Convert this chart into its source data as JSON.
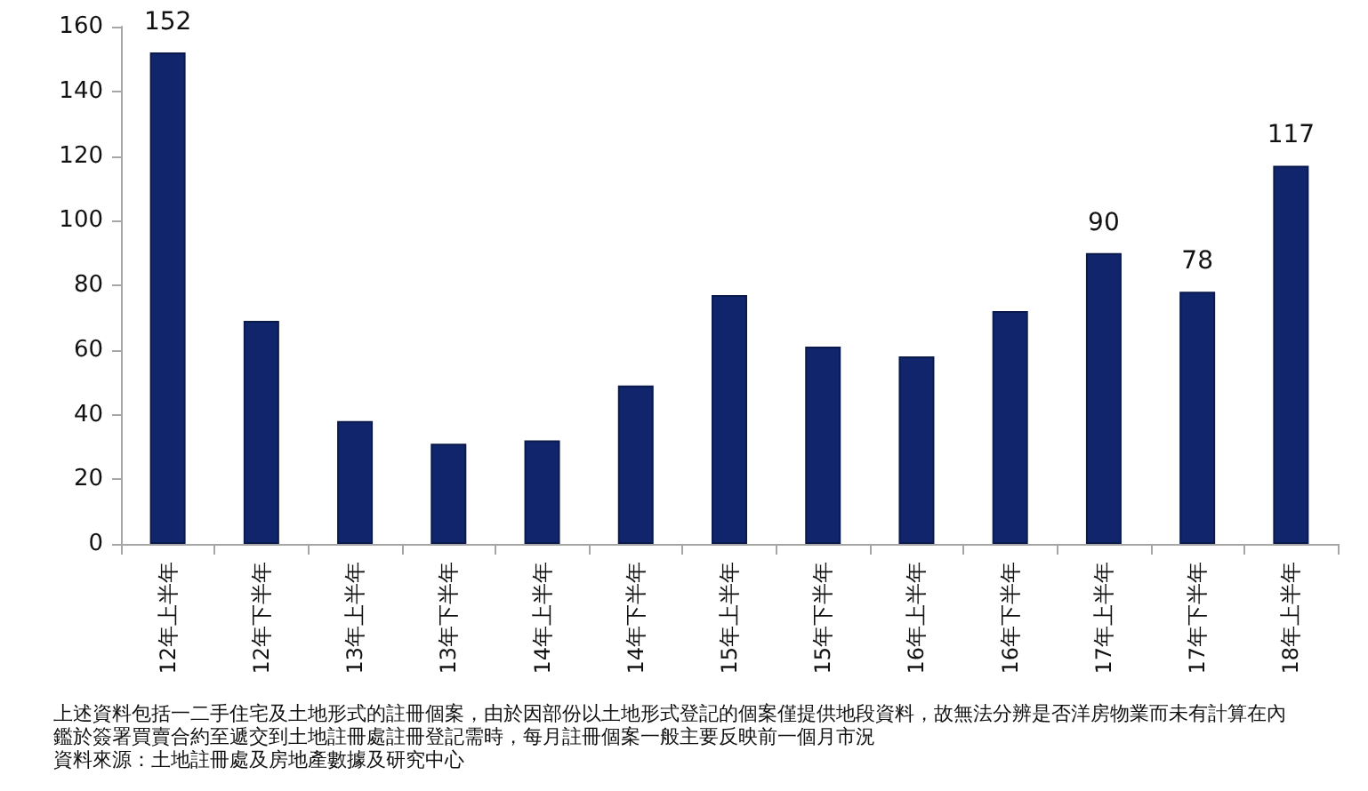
{
  "chart_data": {
    "type": "bar",
    "categories": [
      "12年上半年",
      "12年下半年",
      "13年上半年",
      "13年下半年",
      "14年上半年",
      "14年下半年",
      "15年上半年",
      "15年下半年",
      "16年上半年",
      "16年下半年",
      "17年上半年",
      "17年下半年",
      "18年上半年"
    ],
    "values": [
      152,
      69,
      38,
      31,
      32,
      49,
      77,
      61,
      58,
      72,
      90,
      78,
      117
    ],
    "value_labels": [
      "152",
      null,
      null,
      null,
      null,
      null,
      null,
      null,
      null,
      null,
      "90",
      "78",
      "117"
    ],
    "color": "#10256b",
    "ylim": [
      0,
      160
    ],
    "yticks": [
      0,
      20,
      40,
      60,
      80,
      100,
      120,
      140,
      160
    ],
    "annotations": [
      "上述資料包括一二手住宅及土地形式的註冊個案，由於因部份以土地形式登記的個案僅提供地段資料，故無法分辨是否洋房物業而未有計算在內",
      "鑑於簽署買賣合約至遞交到土地註冊處註冊登記需時，每月註冊個案一般主要反映前一個月市況",
      "資料來源：土地註冊處及房地產數據及研究中心"
    ]
  }
}
